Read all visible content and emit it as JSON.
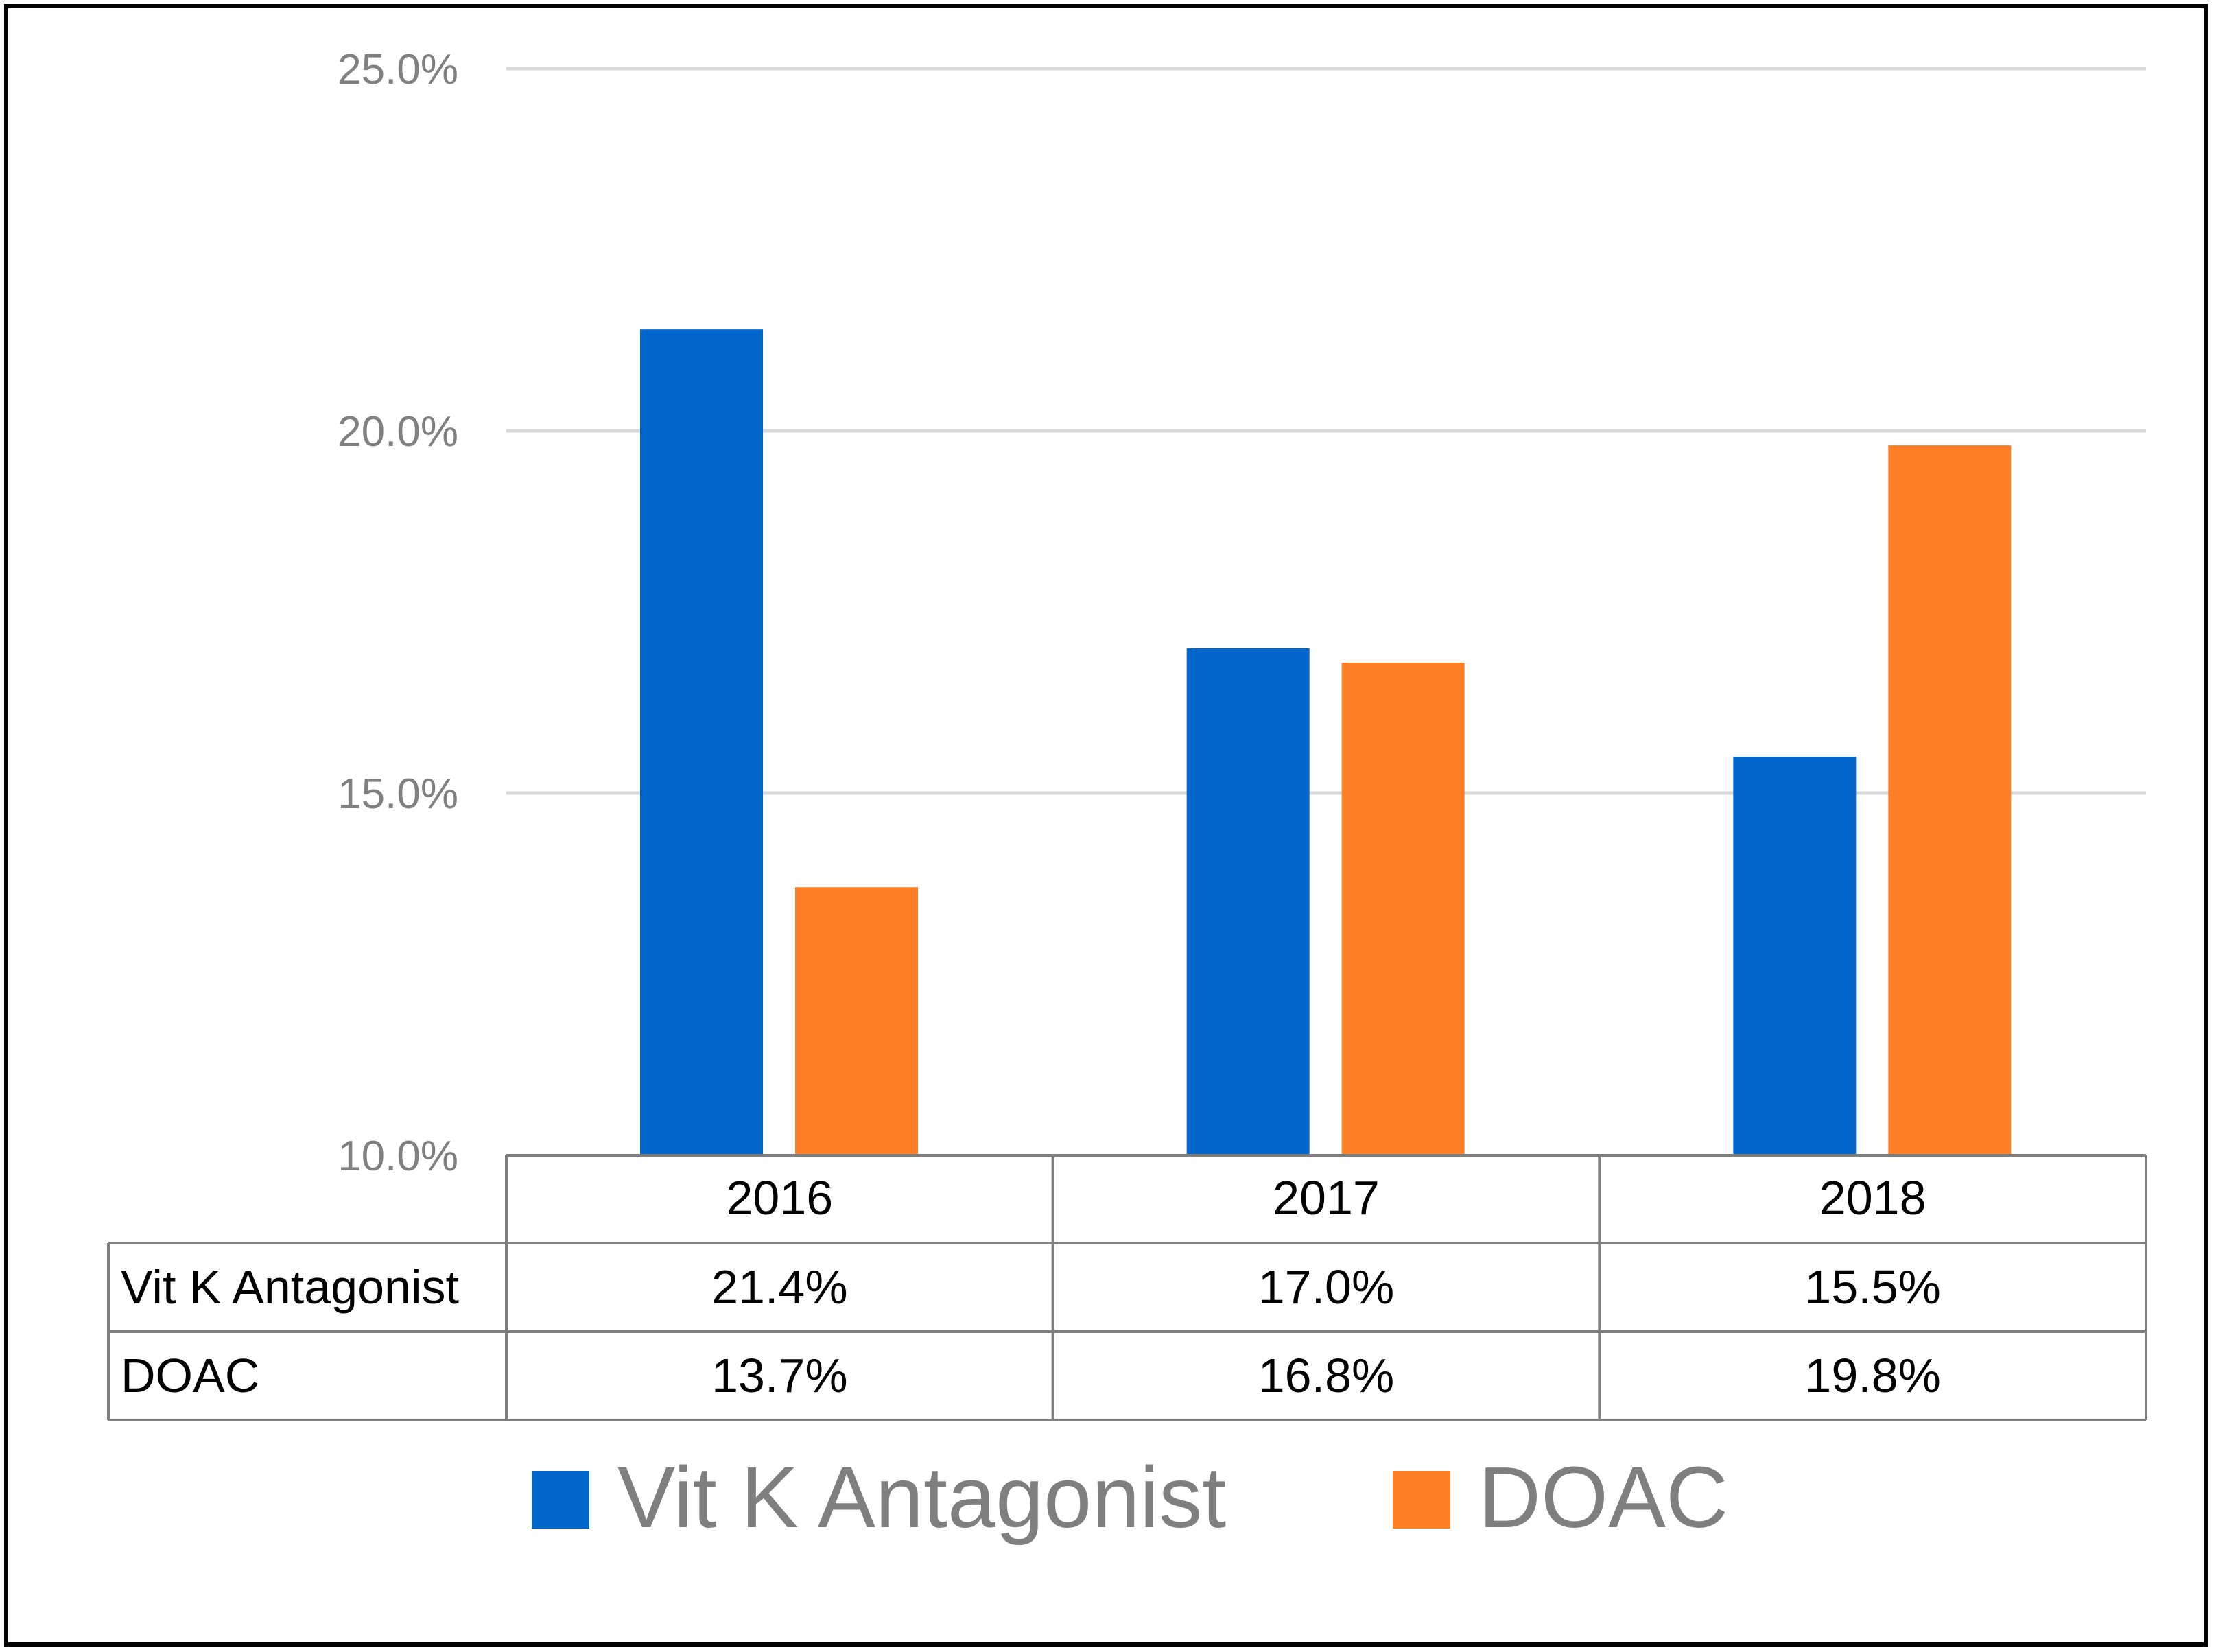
{
  "chart_data": {
    "type": "bar",
    "categories": [
      "2016",
      "2017",
      "2018"
    ],
    "series": [
      {
        "name": "Vit K Antagonist",
        "values": [
          21.4,
          17.0,
          15.5
        ],
        "labels": [
          "21.4%",
          "17.0%",
          "15.5%"
        ],
        "color": "#0066CC"
      },
      {
        "name": "DOAC",
        "values": [
          13.7,
          16.8,
          19.8
        ],
        "labels": [
          "13.7%",
          "16.8%",
          "19.8%"
        ],
        "color": "#FF7F27"
      }
    ],
    "yticks": [
      10.0,
      15.0,
      20.0,
      25.0
    ],
    "ytick_labels": [
      "10.0%",
      "15.0%",
      "20.0%",
      "25.0%"
    ],
    "ylim": [
      10,
      25
    ],
    "grid": true,
    "legend": "bottom",
    "data_table": true,
    "colors": {
      "gridline": "#D9D9D9",
      "table_border": "#7F7F7F",
      "tick_text": "#808080",
      "legend_text": "#7F7F7F"
    }
  }
}
